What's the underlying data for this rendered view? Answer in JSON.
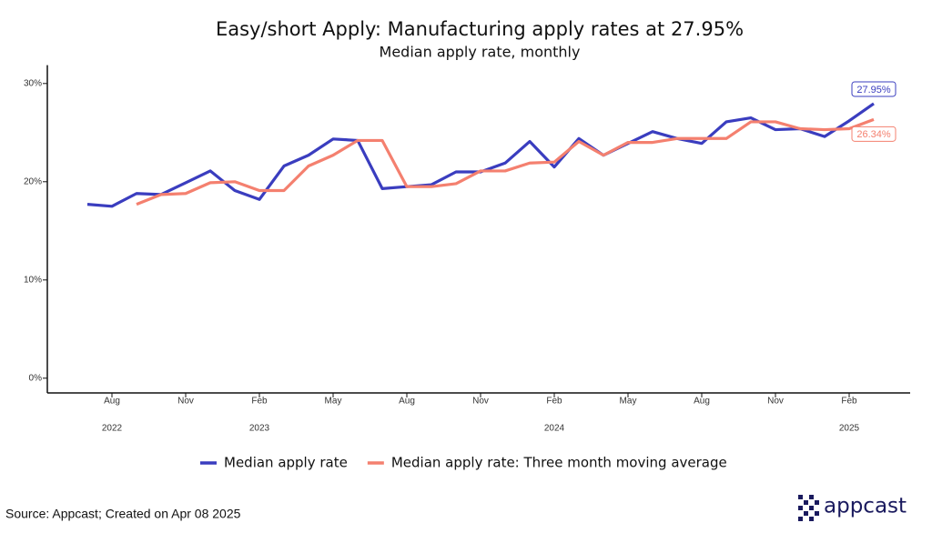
{
  "chart_data": {
    "type": "line",
    "title": "Easy/short Apply: Manufacturing apply rates at 27.95%",
    "subtitle": "Median apply rate, monthly",
    "categories": [
      null,
      "Aug",
      null,
      null,
      "Nov",
      null,
      null,
      "Feb",
      null,
      null,
      "May",
      null,
      null,
      "Aug",
      null,
      null,
      "Nov",
      null,
      null,
      "Feb",
      null,
      null,
      "May",
      null,
      null,
      "Aug",
      null,
      null,
      "Nov",
      null,
      null,
      "Feb",
      null
    ],
    "years": [
      null,
      "2022",
      null,
      null,
      null,
      null,
      null,
      "2023",
      null,
      null,
      null,
      null,
      null,
      null,
      null,
      null,
      null,
      null,
      null,
      "2024",
      null,
      null,
      null,
      null,
      null,
      null,
      null,
      null,
      null,
      null,
      null,
      "2025",
      null
    ],
    "series": [
      {
        "name": "Median apply rate",
        "color": "#3a3dbf",
        "values": [
          17.7,
          17.5,
          18.8,
          18.7,
          19.9,
          21.1,
          19.1,
          18.2,
          21.6,
          22.7,
          24.35,
          24.2,
          19.3,
          19.5,
          19.7,
          21.0,
          21.0,
          21.9,
          24.1,
          21.5,
          24.4,
          22.7,
          23.9,
          25.1,
          24.4,
          23.9,
          26.1,
          26.5,
          25.3,
          25.4,
          24.6,
          26.2,
          27.95
        ],
        "value_labels": [
          null,
          null,
          null,
          null,
          null,
          null,
          null,
          null,
          null,
          null,
          null,
          null,
          null,
          null,
          null,
          null,
          null,
          null,
          null,
          null,
          null,
          null,
          null,
          null,
          null,
          null,
          null,
          null,
          null,
          null,
          null,
          null,
          "27.95%"
        ]
      },
      {
        "name": "Median apply rate: Three month moving average",
        "color": "#f4806f",
        "values": [
          null,
          null,
          17.7,
          18.7,
          18.8,
          19.9,
          20.0,
          19.1,
          19.1,
          21.6,
          22.7,
          24.2,
          24.2,
          19.5,
          19.5,
          19.8,
          21.1,
          21.1,
          21.9,
          22.0,
          24.1,
          22.7,
          24.0,
          24.0,
          24.4,
          24.4,
          24.4,
          26.1,
          26.1,
          25.4,
          25.3,
          25.4,
          26.34
        ],
        "value_labels": [
          null,
          null,
          null,
          null,
          null,
          null,
          null,
          null,
          null,
          null,
          null,
          null,
          null,
          null,
          null,
          null,
          null,
          null,
          null,
          null,
          null,
          null,
          null,
          null,
          null,
          null,
          null,
          null,
          null,
          null,
          null,
          null,
          "26.34%"
        ]
      }
    ],
    "ylim": [
      -1.5,
      31.5
    ],
    "yticks": [
      {
        "value": 0,
        "label": "0%"
      },
      {
        "value": 10,
        "label": "10%"
      },
      {
        "value": 20,
        "label": "20%"
      },
      {
        "value": 30,
        "label": "30%"
      }
    ],
    "legend": "bottom",
    "source": "Source: Appcast; Created on Apr 08 2025",
    "logo": "appcast"
  }
}
